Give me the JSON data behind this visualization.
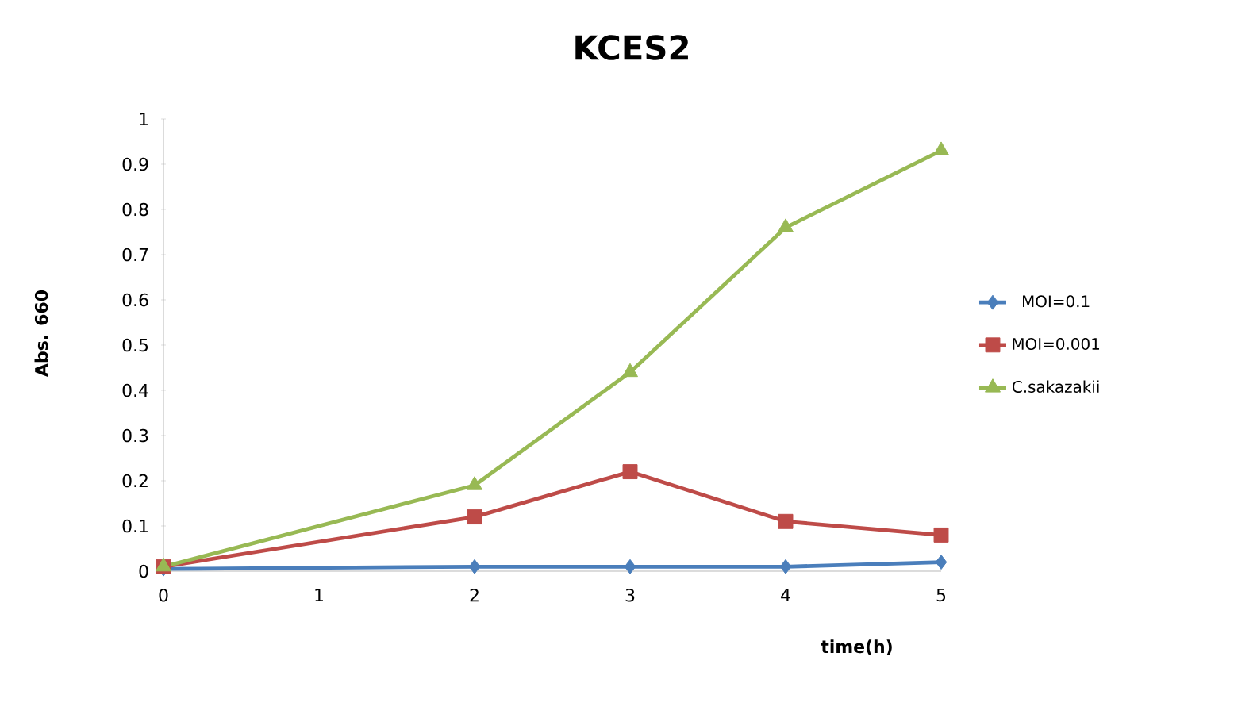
{
  "chart_data": {
    "type": "line",
    "title": "KCES2",
    "xlabel": "time(h)",
    "ylabel": "Abs. 660",
    "xlim": [
      0,
      5
    ],
    "xticks": [
      0,
      1,
      2,
      3,
      4,
      5
    ],
    "ylim": [
      0,
      1
    ],
    "yticks": [
      0,
      0.1,
      0.2,
      0.3,
      0.4,
      0.5,
      0.6,
      0.7,
      0.8,
      0.9,
      1
    ],
    "grid": false,
    "legend": "right",
    "series": [
      {
        "name": "MOI=0.1",
        "color": "#4a7ebb",
        "marker": "diamond",
        "x": [
          0,
          2,
          3,
          4,
          5
        ],
        "values": [
          0.005,
          0.01,
          0.01,
          0.01,
          0.02
        ]
      },
      {
        "name": "MOI=0.001",
        "color": "#be4b48",
        "marker": "square",
        "x": [
          0,
          2,
          3,
          4,
          5
        ],
        "values": [
          0.01,
          0.12,
          0.22,
          0.11,
          0.08
        ]
      },
      {
        "name": "C.sakazakii",
        "color": "#98b954",
        "marker": "triangle",
        "x": [
          0,
          2,
          3,
          4,
          5
        ],
        "values": [
          0.01,
          0.19,
          0.44,
          0.76,
          0.93
        ]
      }
    ]
  }
}
